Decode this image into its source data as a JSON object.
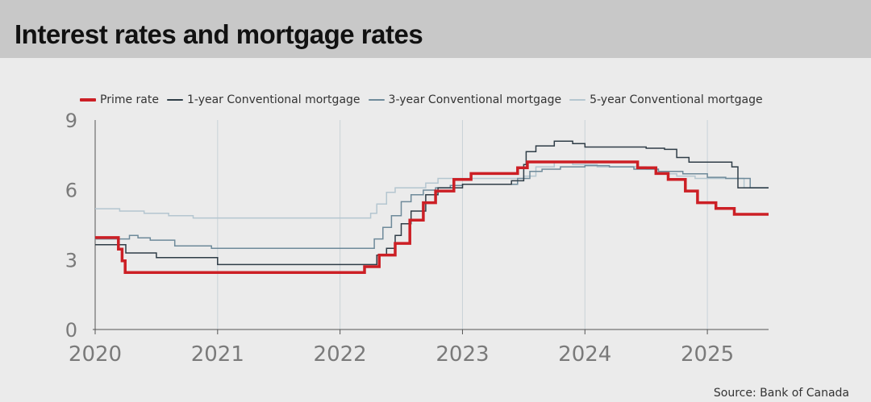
{
  "title": "Interest rates and mortgage rates",
  "source": "Source: Bank of Canada",
  "chart_data": {
    "type": "line",
    "xlim": [
      2020,
      2025.5
    ],
    "ylim": [
      0,
      9
    ],
    "x_ticks": [
      2020,
      2021,
      2022,
      2023,
      2024,
      2025
    ],
    "x_tick_labels": [
      "2020",
      "2021",
      "2022",
      "2023",
      "2024",
      "2025"
    ],
    "y_ticks": [
      0,
      3,
      6,
      9
    ],
    "y_tick_labels": [
      "0",
      "3",
      "6",
      "9"
    ],
    "grid": "vertical",
    "legend_position": "top",
    "series": [
      {
        "name": "5-year Conventional mortgage",
        "color": "#b4c6d0",
        "stroke": 1.5,
        "step": true,
        "x": [
          2020.0,
          2020.2,
          2020.4,
          2020.6,
          2020.8,
          2021.0,
          2021.5,
          2022.0,
          2022.15,
          2022.25,
          2022.3,
          2022.38,
          2022.45,
          2022.5,
          2022.6,
          2022.7,
          2022.8,
          2022.9,
          2023.0,
          2023.3,
          2023.5,
          2023.6,
          2023.75,
          2023.9,
          2024.1,
          2024.3,
          2024.5,
          2024.6,
          2024.75,
          2024.9,
          2025.0,
          2025.2,
          2025.3,
          2025.5
        ],
        "y": [
          5.19,
          5.09,
          4.99,
          4.89,
          4.79,
          4.79,
          4.79,
          4.79,
          4.79,
          4.99,
          5.39,
          5.89,
          6.09,
          6.09,
          6.09,
          6.29,
          6.49,
          6.49,
          6.49,
          6.49,
          6.59,
          6.99,
          7.19,
          7.09,
          6.99,
          6.99,
          6.89,
          6.69,
          6.59,
          6.49,
          6.49,
          6.49,
          6.09,
          6.09
        ]
      },
      {
        "name": "3-year Conventional mortgage",
        "color": "#6e8a9a",
        "stroke": 1.5,
        "step": true,
        "x": [
          2020.0,
          2020.28,
          2020.35,
          2020.45,
          2020.65,
          2020.95,
          2021.5,
          2022.0,
          2022.2,
          2022.28,
          2022.35,
          2022.42,
          2022.5,
          2022.58,
          2022.68,
          2022.78,
          2022.9,
          2023.0,
          2023.3,
          2023.45,
          2023.55,
          2023.65,
          2023.8,
          2024.0,
          2024.2,
          2024.4,
          2024.6,
          2024.8,
          2025.0,
          2025.15,
          2025.25,
          2025.35,
          2025.5
        ],
        "y": [
          3.89,
          4.04,
          3.94,
          3.84,
          3.59,
          3.49,
          3.49,
          3.49,
          3.49,
          3.89,
          4.39,
          4.89,
          5.49,
          5.79,
          5.99,
          6.09,
          6.19,
          6.24,
          6.24,
          6.49,
          6.79,
          6.89,
          6.99,
          7.04,
          6.99,
          6.89,
          6.79,
          6.69,
          6.54,
          6.49,
          6.49,
          6.09,
          6.09
        ]
      },
      {
        "name": "1-year Conventional mortgage",
        "color": "#2f3d47",
        "stroke": 1.5,
        "step": true,
        "x": [
          2020.0,
          2020.1,
          2020.25,
          2020.5,
          2020.8,
          2021.0,
          2021.5,
          2022.0,
          2022.22,
          2022.3,
          2022.38,
          2022.45,
          2022.5,
          2022.58,
          2022.7,
          2022.8,
          2023.0,
          2023.4,
          2023.5,
          2023.52,
          2023.6,
          2023.75,
          2023.9,
          2024.0,
          2024.3,
          2024.5,
          2024.65,
          2024.75,
          2024.85,
          2025.0,
          2025.2,
          2025.25,
          2025.3,
          2025.5
        ],
        "y": [
          3.64,
          3.64,
          3.29,
          3.09,
          3.09,
          2.79,
          2.79,
          2.79,
          2.79,
          3.19,
          3.49,
          4.04,
          4.54,
          5.09,
          5.79,
          6.09,
          6.24,
          6.39,
          7.09,
          7.64,
          7.89,
          8.09,
          7.99,
          7.84,
          7.84,
          7.79,
          7.74,
          7.39,
          7.19,
          7.19,
          6.99,
          6.09,
          6.09,
          6.09
        ]
      },
      {
        "name": "Prime rate",
        "color": "#cc1f25",
        "stroke": 3.5,
        "step": true,
        "x": [
          2020.0,
          2020.19,
          2020.22,
          2020.245,
          2021.0,
          2022.0,
          2022.2,
          2022.32,
          2022.45,
          2022.57,
          2022.68,
          2022.78,
          2022.93,
          2023.07,
          2023.45,
          2023.53,
          2024.0,
          2024.43,
          2024.58,
          2024.68,
          2024.82,
          2024.92,
          2025.07,
          2025.22,
          2025.5
        ],
        "y": [
          3.95,
          3.45,
          2.95,
          2.45,
          2.45,
          2.45,
          2.7,
          3.2,
          3.7,
          4.7,
          5.45,
          5.95,
          6.45,
          6.7,
          6.95,
          7.2,
          7.2,
          6.95,
          6.7,
          6.45,
          5.95,
          5.45,
          5.2,
          4.95,
          4.95
        ]
      }
    ]
  }
}
